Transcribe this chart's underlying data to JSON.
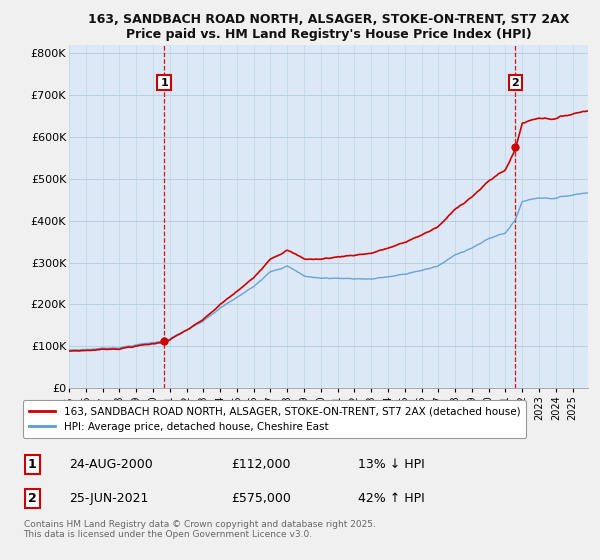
{
  "title_line1": "163, SANDBACH ROAD NORTH, ALSAGER, STOKE-ON-TRENT, ST7 2AX",
  "title_line2": "Price paid vs. HM Land Registry's House Price Index (HPI)",
  "bg_color": "#f0f0f0",
  "plot_bg_color": "#dce8f5",
  "grid_color": "#b8cfe0",
  "hpi_color": "#5b9bd5",
  "price_color": "#cc0000",
  "dashed_color": "#cc0000",
  "ylim": [
    0,
    820000
  ],
  "yticks": [
    0,
    100000,
    200000,
    300000,
    400000,
    500000,
    600000,
    700000,
    800000
  ],
  "ytick_labels": [
    "£0",
    "£100K",
    "£200K",
    "£300K",
    "£400K",
    "£500K",
    "£600K",
    "£700K",
    "£800K"
  ],
  "m1": 68,
  "m2": 319,
  "p1": 112000,
  "p2": 575000,
  "annotation1_label": "1",
  "annotation2_label": "2",
  "legend_entry1": "163, SANDBACH ROAD NORTH, ALSAGER, STOKE-ON-TRENT, ST7 2AX (detached house)",
  "legend_entry2": "HPI: Average price, detached house, Cheshire East",
  "table_row1": [
    "1",
    "24-AUG-2000",
    "£112,000",
    "13% ↓ HPI"
  ],
  "table_row2": [
    "2",
    "25-JUN-2021",
    "£575,000",
    "42% ↑ HPI"
  ],
  "footer": "Contains HM Land Registry data © Crown copyright and database right 2025.\nThis data is licensed under the Open Government Licence v3.0.",
  "start_year": 1995,
  "end_year": 2025,
  "n_months": 372
}
